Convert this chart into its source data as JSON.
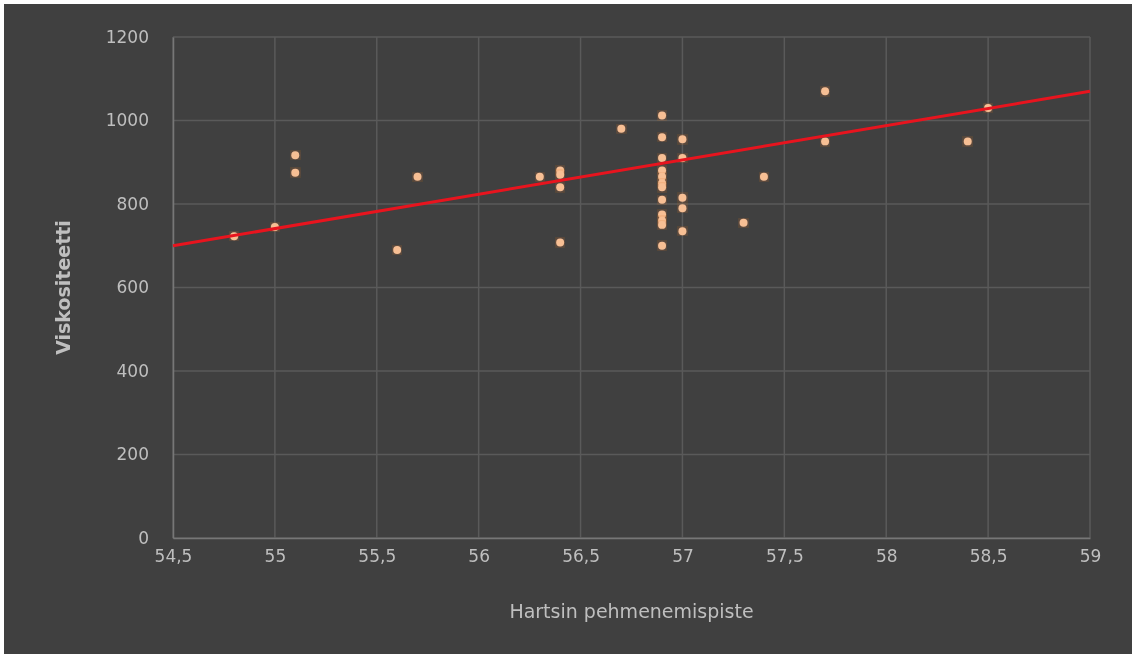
{
  "chart_data": {
    "type": "scatter",
    "xlabel": "Hartsin pehmenemispiste",
    "ylabel": "Viskositeetti",
    "xlim": [
      54.5,
      59
    ],
    "xticks": [
      {
        "value": 54.5,
        "label": "54,5"
      },
      55,
      {
        "value": 55.5,
        "label": "55,5"
      },
      56,
      {
        "value": 56.5,
        "label": "56,5"
      },
      57,
      {
        "value": 57.5,
        "label": "57,5"
      },
      58,
      {
        "value": 58.5,
        "label": "58,5"
      },
      59
    ],
    "ylim": [
      0,
      1200
    ],
    "yticks": [
      0,
      200,
      400,
      600,
      800,
      1000,
      1200
    ],
    "grid": true,
    "marker": "circle",
    "series": [
      {
        "color": "#f7bf94",
        "x": [
          54.8,
          55.0,
          55.1,
          55.1,
          55.6,
          55.7,
          56.3,
          56.4,
          56.4,
          56.4,
          56.4,
          56.7,
          56.9,
          56.9,
          56.9,
          56.9,
          56.9,
          56.9,
          56.9,
          56.9,
          56.9,
          56.9,
          56.9,
          56.9,
          57.0,
          57.0,
          57.0,
          57.0,
          57.0,
          57.3,
          57.4,
          57.7,
          57.7,
          58.4,
          58.5
        ],
        "values": [
          723,
          745,
          917,
          875,
          690,
          865,
          865,
          880,
          870,
          840,
          708,
          980,
          1012,
          960,
          910,
          880,
          865,
          850,
          840,
          810,
          775,
          760,
          750,
          700,
          955,
          910,
          815,
          790,
          735,
          755,
          865,
          1070,
          950,
          950,
          1030
        ]
      },
      {
        "type": "line",
        "color": "#e8141e",
        "marker": "none",
        "x": [
          54.5,
          59
        ],
        "values": [
          700,
          1070
        ]
      }
    ]
  }
}
